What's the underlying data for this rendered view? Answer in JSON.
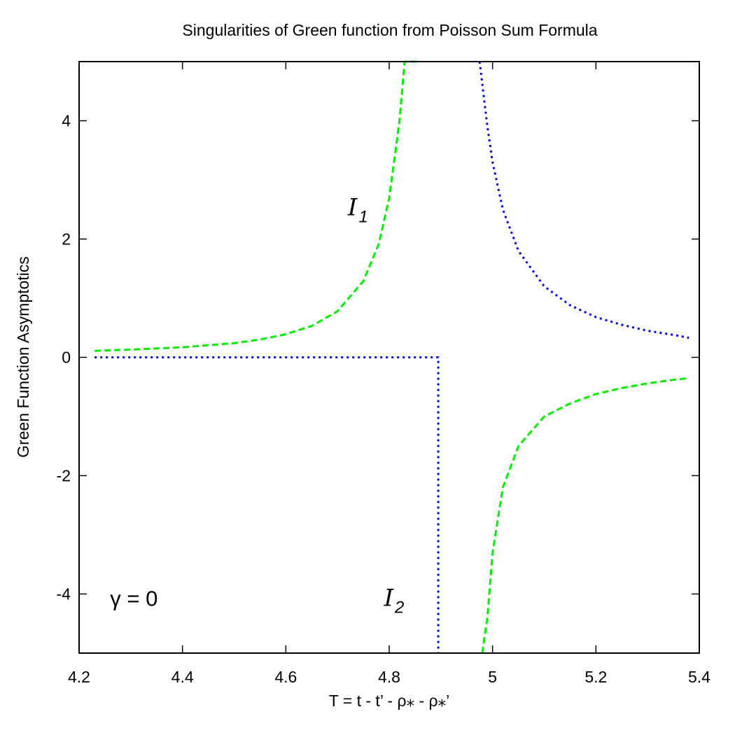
{
  "chart_data": {
    "type": "line",
    "title": "Singularities of Green function from Poisson Sum Formula",
    "xlabel": "T = t - t’ - ρ⁎ - ρ⁎’",
    "ylabel": "Green Function Asymptotics",
    "xlim": [
      4.2,
      5.4
    ],
    "ylim": [
      -5,
      5
    ],
    "xticks": [
      "4.2",
      "4.4",
      "4.6",
      "4.8",
      "5",
      "5.2",
      "5.4"
    ],
    "xtick_values": [
      4.2,
      4.4,
      4.6,
      4.8,
      5.0,
      5.2,
      5.4
    ],
    "yticks": [
      "-4",
      "-2",
      "0",
      "2",
      "4"
    ],
    "ytick_values": [
      -4,
      -2,
      0,
      2,
      4
    ],
    "grid": false,
    "legend": "none",
    "series": [
      {
        "style": "dashed",
        "color": "#00ee00",
        "segments": [
          {
            "x": [
              4.23,
              4.3,
              4.4,
              4.5,
              4.55,
              4.6,
              4.65,
              4.7,
              4.75,
              4.78,
              4.8,
              4.82,
              4.83,
              4.84,
              4.85,
              4.855
            ],
            "y": [
              0.11,
              0.13,
              0.17,
              0.24,
              0.3,
              0.39,
              0.53,
              0.78,
              1.29,
              1.92,
              2.69,
              4.01,
              5.0,
              5.0,
              5.0,
              5.0
            ]
          },
          {
            "x": [
              4.98,
              4.99,
              5.0,
              5.02,
              5.05,
              5.1,
              5.15,
              5.2,
              5.25,
              5.3,
              5.35,
              5.38
            ],
            "y": [
              -5.0,
              -4.4,
              -3.3,
              -2.2,
              -1.5,
              -1.0,
              -0.78,
              -0.62,
              -0.52,
              -0.44,
              -0.38,
              -0.35
            ]
          }
        ]
      },
      {
        "style": "dotted",
        "color": "#0000dd",
        "segments": [
          {
            "x": [
              4.23,
              4.895,
              4.895
            ],
            "y": [
              0.0,
              0.0,
              -5.0
            ]
          },
          {
            "x": [
              4.975,
              4.99,
              5.0,
              5.02,
              5.05,
              5.1,
              5.15,
              5.2,
              5.25,
              5.3,
              5.35,
              5.38
            ],
            "y": [
              5.0,
              3.9,
              3.3,
              2.5,
              1.8,
              1.2,
              0.88,
              0.68,
              0.55,
              0.45,
              0.38,
              0.33
            ]
          }
        ]
      }
    ],
    "annotations": [
      {
        "name": "i1",
        "symbol": "I",
        "subscript": "1",
        "x": 4.72,
        "y": 2.4
      },
      {
        "name": "i2",
        "symbol": "I",
        "subscript": "2",
        "x": 4.79,
        "y": -4.2
      },
      {
        "name": "gamma",
        "text": "γ = 0",
        "x": 4.26,
        "y": -4.2
      }
    ]
  }
}
